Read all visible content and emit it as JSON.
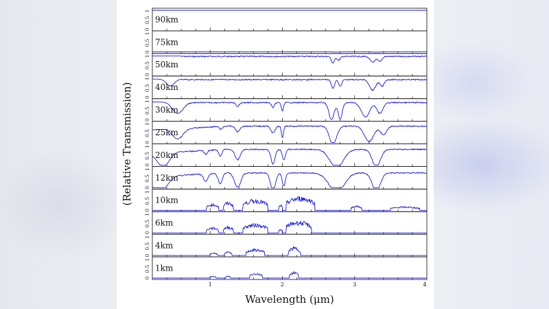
{
  "chart_data": {
    "type": "line",
    "xlabel": "Wavelength (μm)",
    "ylabel": "(Relative Transmission)",
    "xlim": [
      0.2,
      4.0
    ],
    "xticks": [
      "1",
      "2",
      "3",
      "4"
    ],
    "ytick_labels": [
      "0",
      "0.5",
      "1"
    ],
    "panels": [
      {
        "label": "90km",
        "baseline": 1.0,
        "features": []
      },
      {
        "label": "75km",
        "baseline": 0.02,
        "features": [
          {
            "x": 2.75,
            "depth": 0.05,
            "width": 0.04
          },
          {
            "x": 3.3,
            "depth": 0.06,
            "width": 0.05
          }
        ]
      },
      {
        "label": "50km",
        "baseline": 0.98,
        "features": [
          {
            "x": 2.7,
            "depth": 0.35,
            "width": 0.03
          },
          {
            "x": 2.78,
            "depth": 0.2,
            "width": 0.03
          },
          {
            "x": 3.25,
            "depth": 0.3,
            "width": 0.05
          },
          {
            "x": 3.35,
            "depth": 0.25,
            "width": 0.04
          }
        ]
      },
      {
        "label": "40km",
        "baseline": 0.95,
        "features": [
          {
            "x": 0.45,
            "depth": 0.35,
            "width": 0.08
          },
          {
            "x": 2.7,
            "depth": 0.45,
            "width": 0.03
          },
          {
            "x": 2.8,
            "depth": 0.35,
            "width": 0.03
          },
          {
            "x": 3.25,
            "depth": 0.55,
            "width": 0.06
          },
          {
            "x": 3.38,
            "depth": 0.35,
            "width": 0.04
          }
        ]
      },
      {
        "label": "30km",
        "baseline": 0.93,
        "features": [
          {
            "x": 0.55,
            "depth": 0.6,
            "width": 0.1
          },
          {
            "x": 1.38,
            "depth": 0.2,
            "width": 0.03
          },
          {
            "x": 1.87,
            "depth": 0.25,
            "width": 0.03
          },
          {
            "x": 2.0,
            "depth": 0.45,
            "width": 0.02
          },
          {
            "x": 2.68,
            "depth": 0.9,
            "width": 0.05
          },
          {
            "x": 2.8,
            "depth": 0.85,
            "width": 0.04
          },
          {
            "x": 3.15,
            "depth": 0.75,
            "width": 0.08
          },
          {
            "x": 3.35,
            "depth": 0.55,
            "width": 0.06
          }
        ]
      },
      {
        "label": "25km",
        "baseline": 0.88,
        "features": [
          {
            "x": 0.55,
            "depth": 0.55,
            "width": 0.1
          },
          {
            "x": 1.15,
            "depth": 0.15,
            "width": 0.03
          },
          {
            "x": 1.38,
            "depth": 0.3,
            "width": 0.04
          },
          {
            "x": 1.87,
            "depth": 0.35,
            "width": 0.04
          },
          {
            "x": 2.0,
            "depth": 0.6,
            "width": 0.02
          },
          {
            "x": 2.7,
            "depth": 0.95,
            "width": 0.07
          },
          {
            "x": 3.2,
            "depth": 0.8,
            "width": 0.09
          },
          {
            "x": 3.4,
            "depth": 0.45,
            "width": 0.06
          }
        ]
      },
      {
        "label": "20km",
        "baseline": 0.85,
        "features": [
          {
            "x": 0.35,
            "depth": 0.75,
            "width": 0.12
          },
          {
            "x": 0.94,
            "depth": 0.2,
            "width": 0.03
          },
          {
            "x": 1.14,
            "depth": 0.35,
            "width": 0.03
          },
          {
            "x": 1.38,
            "depth": 0.55,
            "width": 0.05
          },
          {
            "x": 1.87,
            "depth": 0.75,
            "width": 0.04
          },
          {
            "x": 2.02,
            "depth": 0.55,
            "width": 0.03
          },
          {
            "x": 2.75,
            "depth": 0.98,
            "width": 0.13
          },
          {
            "x": 3.3,
            "depth": 0.9,
            "width": 0.08
          }
        ]
      },
      {
        "label": "12km",
        "baseline": 0.8,
        "features": [
          {
            "x": 0.3,
            "depth": 0.85,
            "width": 0.15
          },
          {
            "x": 0.94,
            "depth": 0.4,
            "width": 0.04
          },
          {
            "x": 1.14,
            "depth": 0.55,
            "width": 0.04
          },
          {
            "x": 1.38,
            "depth": 0.75,
            "width": 0.06
          },
          {
            "x": 1.87,
            "depth": 0.9,
            "width": 0.05
          },
          {
            "x": 2.02,
            "depth": 0.7,
            "width": 0.03
          },
          {
            "x": 2.75,
            "depth": 0.98,
            "width": 0.15
          },
          {
            "x": 3.3,
            "depth": 0.95,
            "width": 0.08
          }
        ]
      },
      {
        "label": "10km",
        "baseline": 0.0,
        "bands": [
          {
            "from": 0.95,
            "to": 1.12,
            "height": 0.35
          },
          {
            "from": 1.18,
            "to": 1.32,
            "height": 0.45
          },
          {
            "from": 1.45,
            "to": 1.8,
            "height": 0.6
          },
          {
            "from": 1.95,
            "to": 2.0,
            "height": 0.3
          },
          {
            "from": 2.05,
            "to": 2.45,
            "height": 0.75
          },
          {
            "from": 2.95,
            "to": 3.1,
            "height": 0.25
          },
          {
            "from": 3.5,
            "to": 3.9,
            "height": 0.2
          }
        ]
      },
      {
        "label": "6km",
        "baseline": 0.0,
        "bands": [
          {
            "from": 0.95,
            "to": 1.12,
            "height": 0.3
          },
          {
            "from": 1.18,
            "to": 1.32,
            "height": 0.35
          },
          {
            "from": 1.45,
            "to": 1.8,
            "height": 0.5
          },
          {
            "from": 1.95,
            "to": 2.0,
            "height": 0.2
          },
          {
            "from": 2.05,
            "to": 2.4,
            "height": 0.65
          }
        ]
      },
      {
        "label": "4km",
        "baseline": 0.0,
        "bands": [
          {
            "from": 1.0,
            "to": 1.1,
            "height": 0.15
          },
          {
            "from": 1.2,
            "to": 1.3,
            "height": 0.2
          },
          {
            "from": 1.5,
            "to": 1.75,
            "height": 0.35
          },
          {
            "from": 2.08,
            "to": 2.25,
            "height": 0.45
          }
        ]
      },
      {
        "label": "1km",
        "baseline": 0.0,
        "bands": [
          {
            "from": 1.0,
            "to": 1.08,
            "height": 0.1
          },
          {
            "from": 1.22,
            "to": 1.28,
            "height": 0.12
          },
          {
            "from": 1.55,
            "to": 1.72,
            "height": 0.28
          },
          {
            "from": 2.1,
            "to": 2.22,
            "height": 0.35
          }
        ]
      }
    ],
    "colors": {
      "line": "#1515e0",
      "axis": "#222222"
    }
  }
}
